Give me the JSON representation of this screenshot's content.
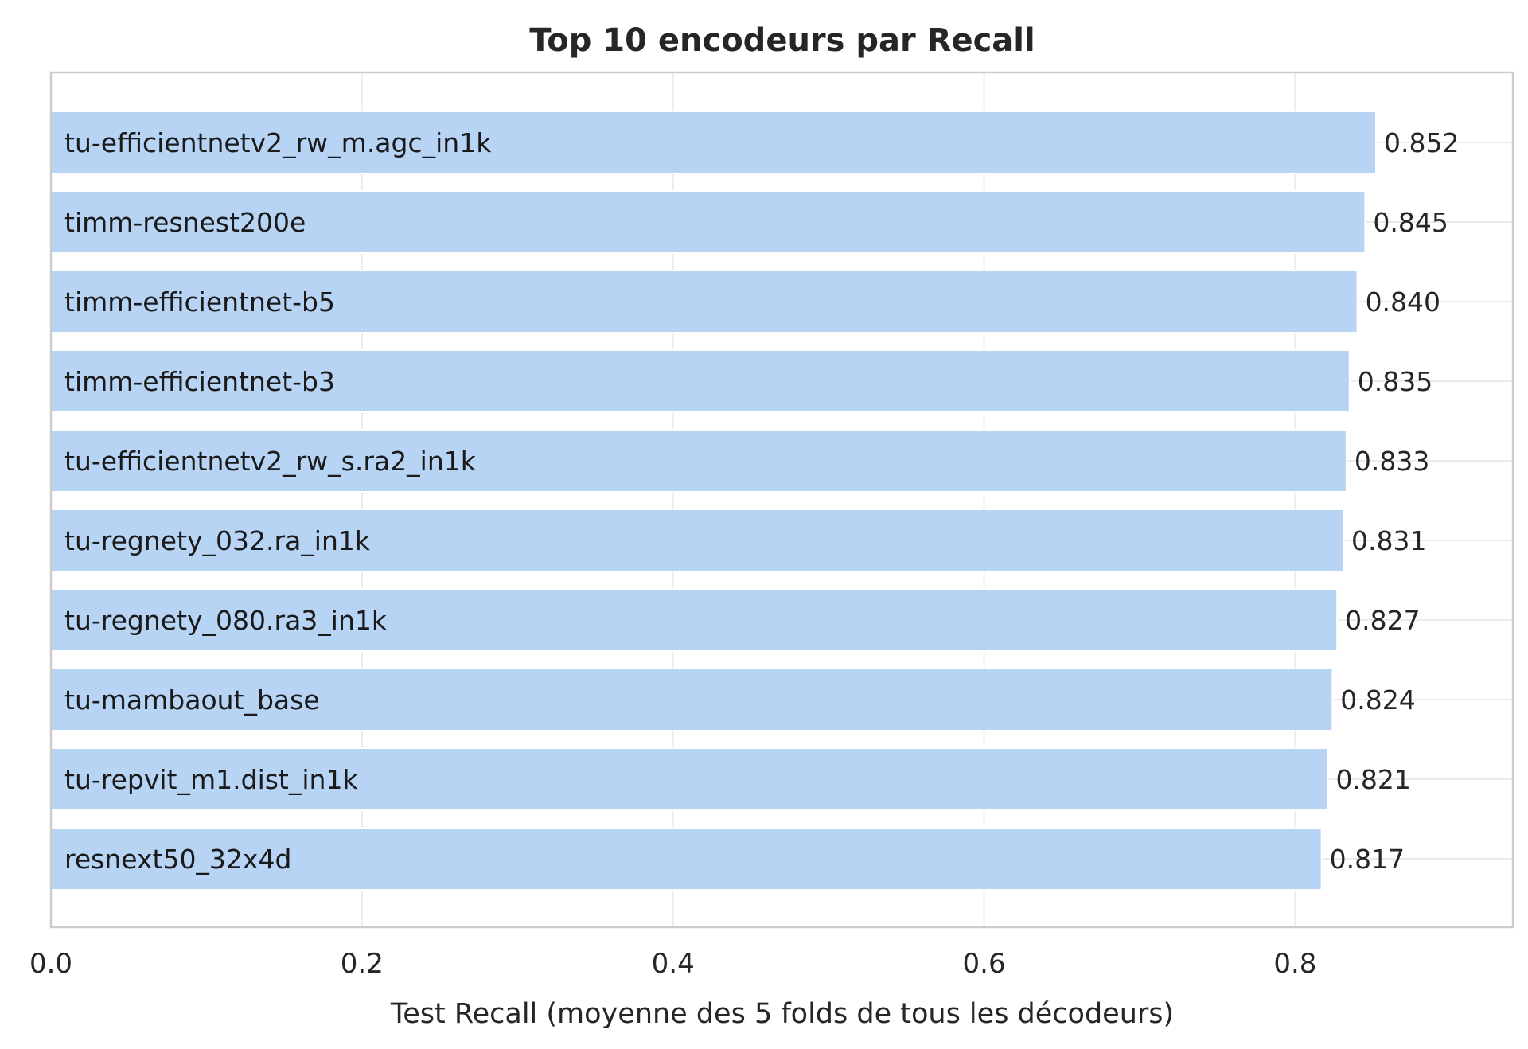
{
  "chart_data": {
    "type": "bar",
    "orientation": "horizontal",
    "title": "Top 10 encodeurs par Recall",
    "xlabel": "Test Recall (moyenne des 5 folds de tous les décodeurs)",
    "ylabel": "",
    "xlim": [
      0,
      0.94
    ],
    "xticks": [
      0.0,
      0.2,
      0.4,
      0.6,
      0.8
    ],
    "xtick_labels": [
      "0.0",
      "0.2",
      "0.4",
      "0.6",
      "0.8"
    ],
    "grid": true,
    "categories": [
      "tu-efficientnetv2_rw_m.agc_in1k",
      "timm-resnest200e",
      "timm-efficientnet-b5",
      "timm-efficientnet-b3",
      "tu-efficientnetv2_rw_s.ra2_in1k",
      "tu-regnety_032.ra_in1k",
      "tu-regnety_080.ra3_in1k",
      "tu-mambaout_base",
      "tu-repvit_m1.dist_in1k",
      "resnext50_32x4d"
    ],
    "values": [
      0.852,
      0.845,
      0.84,
      0.835,
      0.833,
      0.831,
      0.827,
      0.824,
      0.821,
      0.817
    ],
    "value_labels": [
      "0.852",
      "0.845",
      "0.840",
      "0.835",
      "0.833",
      "0.831",
      "0.827",
      "0.824",
      "0.821",
      "0.817"
    ],
    "colors": {
      "bar": "#b7d4f5",
      "bar_edge": "#ffffff",
      "grid": "#ebebeb",
      "frame": "#cccccc",
      "text": "#262626"
    }
  }
}
